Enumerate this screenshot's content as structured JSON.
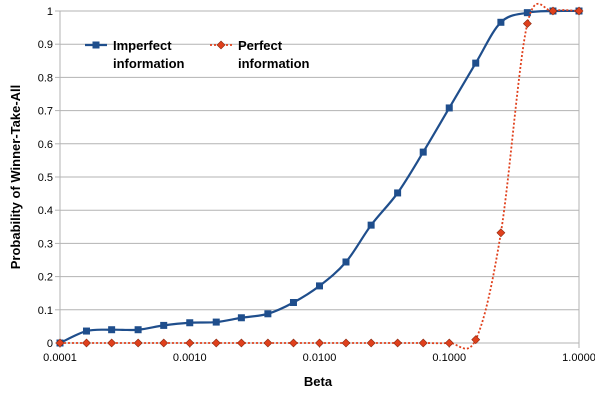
{
  "chart_data": {
    "type": "scatter",
    "title": "",
    "xlabel": "Beta",
    "ylabel": "Probability of Winner-Take-All",
    "x_scale": "log",
    "xlim": [
      0.0001,
      1.0
    ],
    "ylim": [
      0,
      1
    ],
    "grid": "horizontal",
    "legend_position": "top-left",
    "x_tick_labels": [
      "0.0001",
      "0.0010",
      "0.0100",
      "0.1000",
      "1.0000"
    ],
    "x_ticks": [
      0.0001,
      0.001,
      0.01,
      0.1,
      1.0
    ],
    "y_tick_labels": [
      "0",
      "0.1",
      "0.2",
      "0.3",
      "0.4",
      "0.5",
      "0.6",
      "0.7",
      "0.8",
      "0.9",
      "1"
    ],
    "y_ticks": [
      0,
      0.1,
      0.2,
      0.3,
      0.4,
      0.5,
      0.6,
      0.7,
      0.8,
      0.9,
      1.0
    ],
    "series": [
      {
        "name": "Imperfect information",
        "legend_lines": [
          "Imperfect",
          "information"
        ],
        "marker": "square",
        "line_style": "solid",
        "color": "#1f4e8c",
        "x": [
          0.0001,
          0.00016,
          0.00025,
          0.0004,
          0.00063,
          0.001,
          0.0016,
          0.0025,
          0.004,
          0.0063,
          0.01,
          0.016,
          0.025,
          0.04,
          0.063,
          0.1,
          0.16,
          0.25,
          0.4,
          0.63,
          1.0
        ],
        "y": [
          0.0,
          0.036,
          0.04,
          0.04,
          0.053,
          0.061,
          0.063,
          0.076,
          0.088,
          0.122,
          0.172,
          0.244,
          0.355,
          0.452,
          0.575,
          0.708,
          0.843,
          0.966,
          0.995,
          1.0,
          1.0
        ]
      },
      {
        "name": "Perfect information",
        "legend_lines": [
          "Perfect",
          "information"
        ],
        "marker": "diamond",
        "line_style": "dotted",
        "color": "#e0401c",
        "x": [
          0.0001,
          0.00016,
          0.00025,
          0.0004,
          0.00063,
          0.001,
          0.0016,
          0.0025,
          0.004,
          0.0063,
          0.01,
          0.016,
          0.025,
          0.04,
          0.063,
          0.1,
          0.16,
          0.25,
          0.4,
          0.63,
          1.0
        ],
        "y": [
          0.0,
          0.0,
          0.0,
          0.0,
          0.0,
          0.0,
          0.0,
          0.0,
          0.0,
          0.0,
          0.0,
          0.0,
          0.0,
          0.0,
          0.0,
          0.0,
          0.01,
          0.332,
          0.962,
          1.0,
          1.0
        ]
      }
    ]
  }
}
